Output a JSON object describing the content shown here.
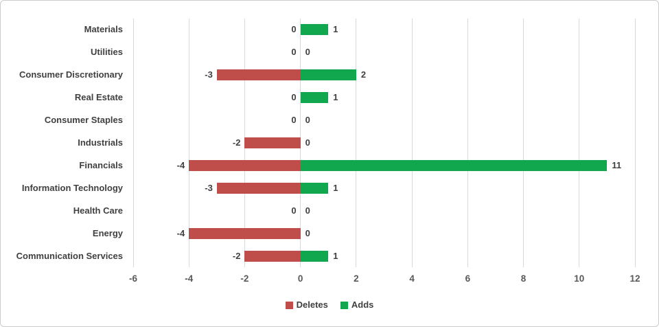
{
  "chart_data": {
    "type": "bar",
    "orientation": "horizontal",
    "title": "",
    "xlabel": "",
    "ylabel": "",
    "categories": [
      "Materials",
      "Utilities",
      "Consumer Discretionary",
      "Real Estate",
      "Consumer Staples",
      "Industrials",
      "Financials",
      "Information Technology",
      "Health Care",
      "Energy",
      "Communication Services"
    ],
    "series": [
      {
        "name": "Deletes",
        "color": "#BF4D4A",
        "values": [
          0,
          0,
          -3,
          0,
          0,
          -2,
          -4,
          -3,
          0,
          -4,
          -2
        ]
      },
      {
        "name": "Adds",
        "color": "#10A74F",
        "values": [
          1,
          0,
          2,
          1,
          0,
          0,
          11,
          1,
          0,
          0,
          1
        ]
      }
    ],
    "xlim": [
      -6,
      12
    ],
    "xticks": [
      -6,
      -4,
      -2,
      0,
      2,
      4,
      6,
      8,
      10,
      12
    ],
    "grid": "vertical-only",
    "data_labels": "outside-end",
    "legend_position": "bottom",
    "colors": {
      "deletes": "#BF4D4A",
      "adds": "#10A74F",
      "gridline": "#D9D9D9",
      "category_text": "#404040",
      "data_label_text": "#404040",
      "tick_text": "#595959",
      "legend_text": "#404040",
      "card_border": "#CBCBCB",
      "background": "#FFFFFF"
    }
  }
}
